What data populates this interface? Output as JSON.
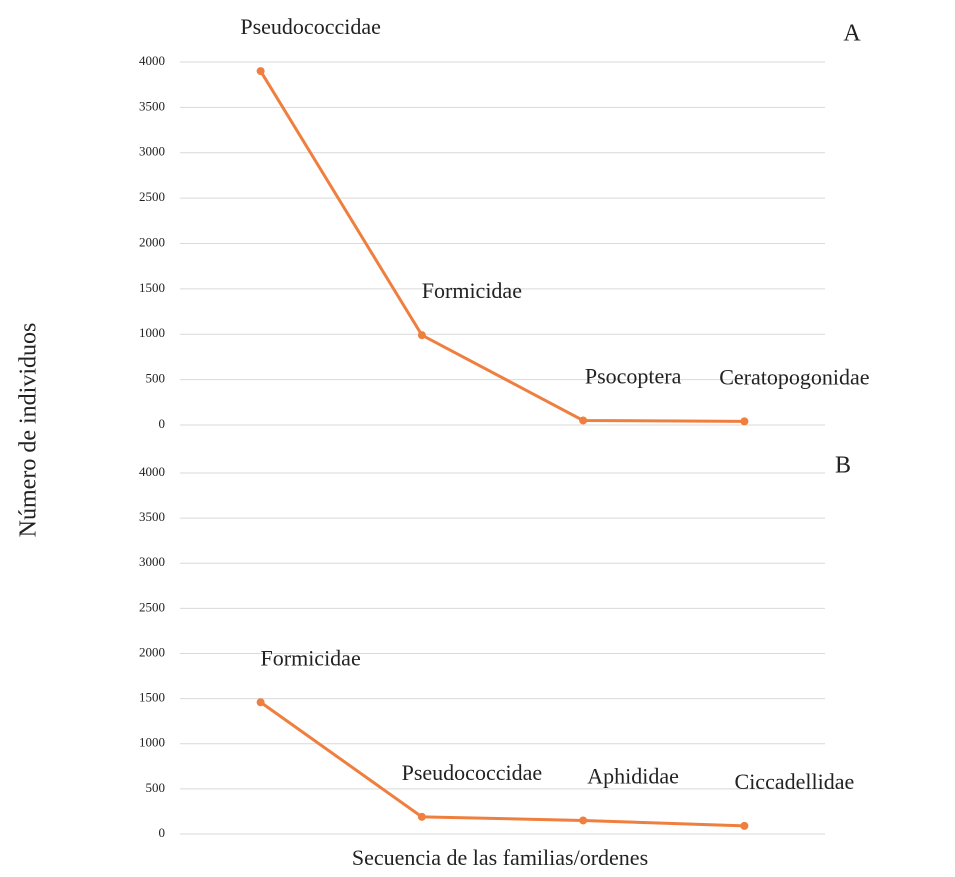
{
  "chart_data": [
    {
      "type": "line",
      "panel": "A",
      "y_label": "Número de individuos",
      "categories": [
        "Pseudococcidae",
        "Formicidae",
        "Psocoptera",
        "Ceratopogonidae"
      ],
      "values": [
        3900,
        990,
        50,
        40
      ],
      "color": "#ef7f3e",
      "ylim": [
        0,
        4000
      ],
      "yticks": [
        0,
        500,
        1000,
        1500,
        2000,
        2500,
        3000,
        3500,
        4000
      ],
      "grid": true
    },
    {
      "type": "line",
      "panel": "B",
      "x_label": "Secuencia de las familias/ordenes",
      "categories": [
        "Formicidae",
        "Pseudococcidae",
        "Aphididae",
        "Ciccadellidae"
      ],
      "values": [
        1460,
        190,
        150,
        90
      ],
      "color": "#ef7f3e",
      "ylim": [
        0,
        4000
      ],
      "yticks": [
        0,
        500,
        1000,
        1500,
        2000,
        2500,
        3000,
        3500,
        4000
      ],
      "grid": true
    }
  ]
}
